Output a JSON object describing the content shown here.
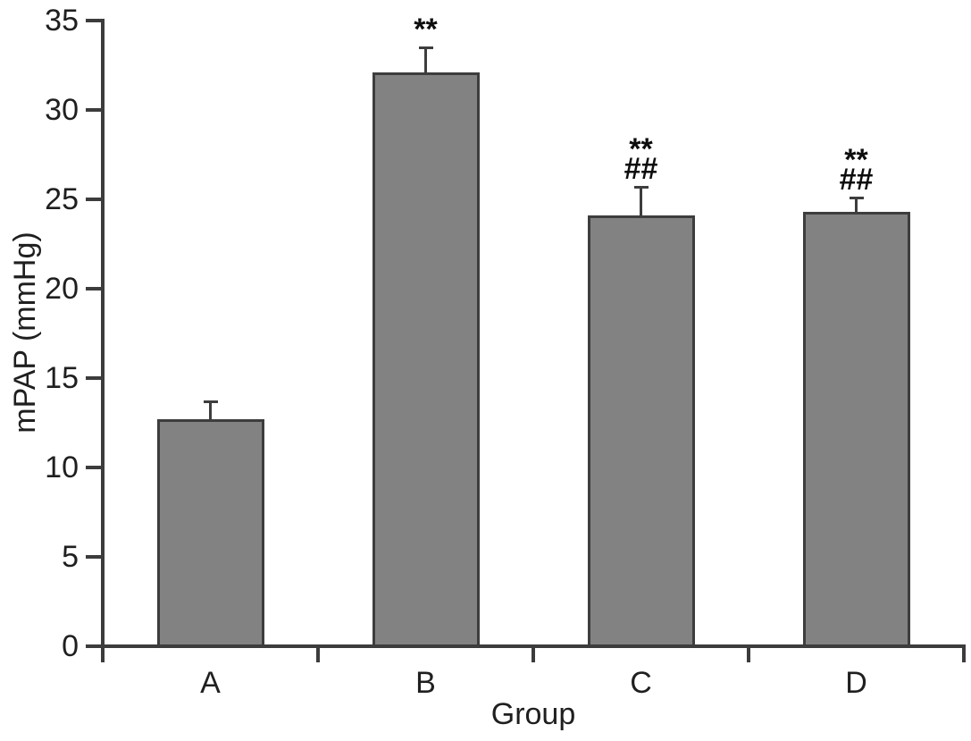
{
  "chart_data": {
    "type": "bar",
    "xlabel": "Group",
    "ylabel": "mPAP (mmHg)",
    "categories": [
      "A",
      "B",
      "C",
      "D"
    ],
    "values": [
      12.6,
      32.0,
      24.0,
      24.2
    ],
    "errors": [
      0.9,
      1.3,
      1.5,
      0.7
    ],
    "error_bar_direction": "upper-only",
    "annotations": [
      [],
      [
        "**"
      ],
      [
        "**",
        "##"
      ],
      [
        "**",
        "##"
      ]
    ],
    "ylim": [
      0,
      35
    ],
    "ytick_step": 5,
    "yticks": [
      0,
      5,
      10,
      15,
      20,
      25,
      30,
      35
    ],
    "grid": false,
    "legend": "none",
    "colors": {
      "bar_fill": "#828282",
      "bar_border": "#3d3d3d",
      "axis": "#3c3c3c",
      "text": "#1f1f1f",
      "annotation": "#0d0d0d",
      "background": "#ffffff"
    }
  }
}
